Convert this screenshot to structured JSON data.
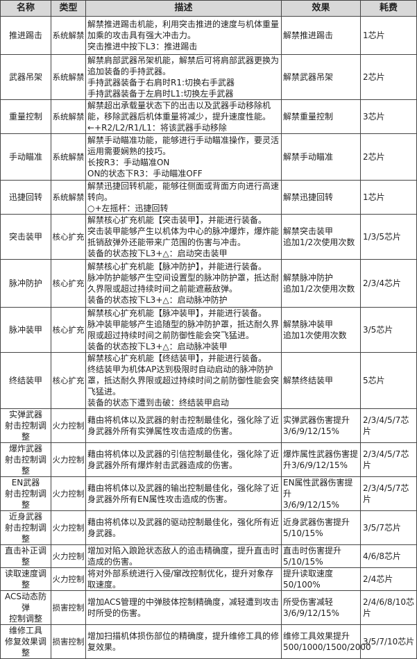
{
  "headers": [
    "名称",
    "类型",
    "描述",
    "效果",
    "耗费"
  ],
  "rows": [
    {
      "name": [
        "推进踢击"
      ],
      "type": "系统解禁",
      "desc": [
        "解禁推进踢击机能，利用突击推进的速度与机体重量加乘的攻击具有强大冲击力。",
        "突击推进中按下L3：推进踢击"
      ],
      "effect": [
        "解禁推进踢击"
      ],
      "cost": "1芯片"
    },
    {
      "name": [
        "武器吊架"
      ],
      "type": "系统解禁",
      "desc": [
        "解禁肩部武器吊架机能，解禁后可将肩部武器更换为追加装备的手持武器。",
        "手持武器装备于右肩时R1:切换右手武器",
        "手持武器装备于左肩时L1:切换左手武器"
      ],
      "effect": [
        "解禁武器吊架"
      ],
      "cost": "2芯片"
    },
    {
      "name": [
        "重量控制"
      ],
      "type": "系统解禁",
      "desc": [
        "解禁超出承载量状态下的出击以及武器手动移除机能，移除武器后机体重量将减少，提升速度性能。",
        "←+R2/L2/R1/L1：将该武器手动移除"
      ],
      "effect": [
        "解禁重量控制"
      ],
      "cost": "3芯片"
    },
    {
      "name": [
        "手动瞄准"
      ],
      "type": "系统解禁",
      "desc": [
        "解禁手动瞄准功能，能够进行手动瞄准操作，要灵活运用需要娴熟的技巧。",
        "长按R3：手动瞄准ON",
        "ON的状态下R3：手动瞄准OFF"
      ],
      "effect": [
        "解禁手动瞄准"
      ],
      "cost": "2芯片"
    },
    {
      "name": [
        "迅捷回转"
      ],
      "type": "系统解禁",
      "desc": [
        "解禁迅捷回转机能，能够往侧面或背面方向进行高速转向。",
        "○+左摇杆：迅捷回转"
      ],
      "effect": [
        "解禁迅捷回转"
      ],
      "cost": "1芯片"
    },
    {
      "name": [
        "突击装甲"
      ],
      "type": "核心扩充",
      "desc": [
        "解禁核心扩充机能【突击装甲】，并能进行装备。",
        "突击装甲能够产生以机体为中心的脉冲爆炸，爆炸能抵销敌弹外还能带来广范围的伤害与冲击。",
        "装备的状态按下L3+△：启动突击装甲"
      ],
      "effect": [
        "解禁突击装甲",
        "追加1/2次使用次数"
      ],
      "cost": "1/3/5芯片"
    },
    {
      "name": [
        "脉冲防护"
      ],
      "type": "核心扩充",
      "desc": [
        "解禁核心扩充机能【脉冲防护】，并能进行装备。",
        "脉冲防护能够产生空间设置型的脉冲防护罩，抵达耐久界限或超过持续时间之前能遮蔽敌弹。",
        "装备的状态按下L3+△：启动脉冲防护"
      ],
      "effect": [
        "解禁脉冲防护",
        "追加1/2次使用次数"
      ],
      "cost": "2/3/4芯片"
    },
    {
      "name": [
        "脉冲装甲"
      ],
      "type": "核心扩充",
      "desc": [
        "解禁核心扩充机能【脉冲装甲】，并能进行装备。",
        "脉冲装甲能够产生追随型的脉冲防护罩，抵达耐久界限或超过持续时间之前防御性能会突飞猛进。",
        "装备的状态按下L3+△：启动脉冲装甲"
      ],
      "effect": [
        "解禁脉冲装甲",
        "追加1次使用次数"
      ],
      "cost": "3/5芯片"
    },
    {
      "name": [
        "终结装甲"
      ],
      "type": "核心扩充",
      "desc": [
        "解禁核心扩充机能【终结装甲】，并能进行装备。",
        "终结装甲为机体AP达到极限时自动启动的脉冲防护罩，抵达耐久界限或超过持续时间之前防御性能会突飞猛进。",
        "装备的状态下遭到击破：终结装甲启动"
      ],
      "effect": [
        "解禁终结装甲"
      ],
      "cost": "5芯片"
    },
    {
      "name": [
        "实弹武器",
        "射击控制调整"
      ],
      "type": "火力控制",
      "desc": [
        "藉由将机体以及武器的射击控制最佳化，强化除了近身武器外所有实弹属性攻击造成的伤害。"
      ],
      "effect": [
        "实弹武器伤害提升",
        "3/6/9/12/15%"
      ],
      "cost": "2/3/4/5/7芯片"
    },
    {
      "name": [
        "爆炸武器",
        "射击控制调整"
      ],
      "type": "火力控制",
      "desc": [
        "藉由将机体以及武器的引信控制最佳化，强化除了近身武器外所有爆炸射击武器造成的伤害。"
      ],
      "effect": [
        "爆炸属性武器伤害提升3/6/9/12/15%"
      ],
      "cost": "2/3/4/5/7芯片"
    },
    {
      "name": [
        "EN武器",
        "射击控制调整"
      ],
      "type": "火力控制",
      "desc": [
        "藉由将机体以及武器的输出控制最佳化，强化除了近身武器外所有EN属性攻击造成的伤害。"
      ],
      "effect": [
        "EN属性武器伤害提升",
        "3/6/9/12/15%"
      ],
      "cost": "2/3/4/5/7芯片"
    },
    {
      "name": [
        "近身武器",
        "射击控制调整"
      ],
      "type": "火力控制",
      "desc": [
        "藉由将机体以及武器的驱动控制最佳化，强化所有近身武器。"
      ],
      "effect": [
        "近身武器伤害提升",
        "5/10/15%"
      ],
      "cost": "3/5/7芯片"
    },
    {
      "name": [
        "直击补正调整"
      ],
      "type": "火力控制",
      "desc": [
        "增加对陷入踉跄状态敌人的追击精确度，提升直击时造成的伤害。"
      ],
      "effect": [
        "直击时伤害提升",
        "5/10/15%"
      ],
      "cost": "4/6/8芯片"
    },
    {
      "name": [
        "读取速度调整"
      ],
      "type": "火力控制",
      "desc": [
        "将对外部系统进行入侵/窜改控制优化，提升对象存取速度。"
      ],
      "effect": [
        "提升读取速度",
        "50/100%"
      ],
      "cost": "2/4芯片"
    },
    {
      "name": [
        "ACS动态防弹",
        "控制调整"
      ],
      "type": "损害控制",
      "desc": [
        "增加ACS管理的中弹肢体控制精确度，减轻遭到攻击时所受的伤害。"
      ],
      "effect": [
        "所受伤害减轻",
        "3/6/9/12/15%"
      ],
      "cost": "2/4/6/8/10芯片"
    },
    {
      "name": [
        "维修工具",
        "修复效果调整"
      ],
      "type": "损害控制",
      "desc": [
        "增加扫描机体损伤部位的精确度，提升维修工具的修复效果。"
      ],
      "effect": [
        "维修工具效果提升",
        "500/1000/1500/2000"
      ],
      "cost": "3/5/7/10芯片"
    }
  ]
}
